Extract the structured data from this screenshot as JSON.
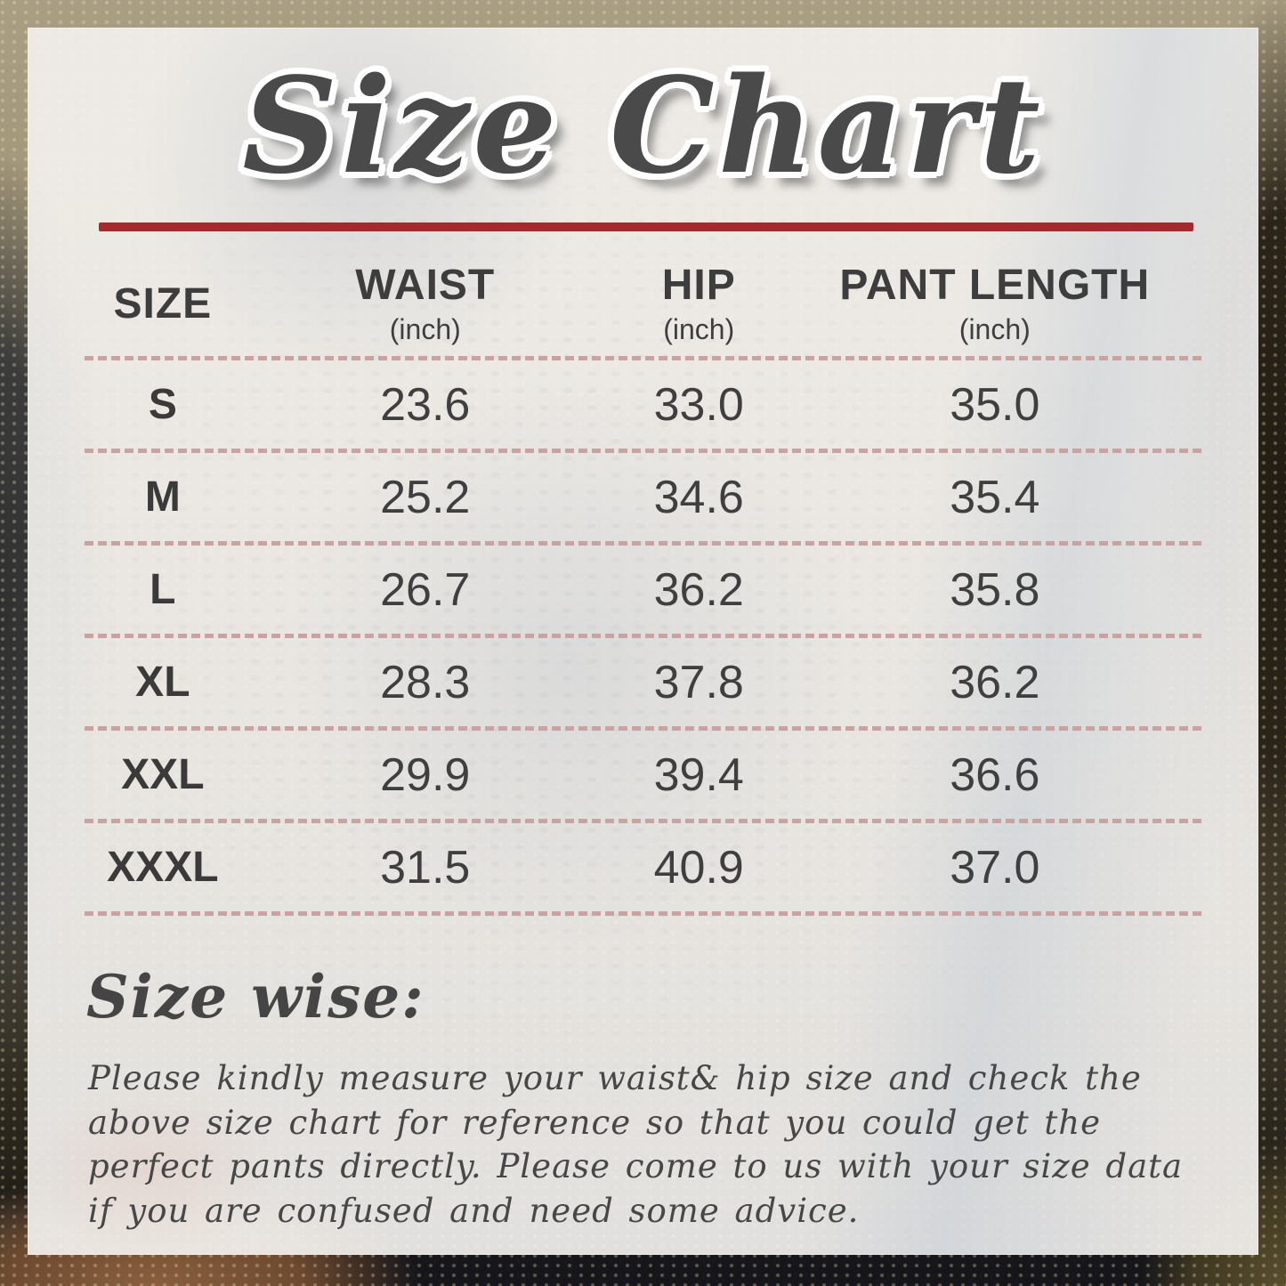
{
  "title": "Size Chart",
  "table": {
    "headers": [
      {
        "label": "SIZE",
        "unit": ""
      },
      {
        "label": "WAIST",
        "unit": "(inch)"
      },
      {
        "label": "HIP",
        "unit": "(inch)"
      },
      {
        "label": "PANT LENGTH",
        "unit": "(inch)"
      }
    ],
    "rows": [
      {
        "size": "S",
        "waist": "23.6",
        "hip": "33.0",
        "pant_length": "35.0"
      },
      {
        "size": "M",
        "waist": "25.2",
        "hip": "34.6",
        "pant_length": "35.4"
      },
      {
        "size": "L",
        "waist": "26.7",
        "hip": "36.2",
        "pant_length": "35.8"
      },
      {
        "size": "XL",
        "waist": "28.3",
        "hip": "37.8",
        "pant_length": "36.2"
      },
      {
        "size": "XXL",
        "waist": "29.9",
        "hip": "39.4",
        "pant_length": "36.6"
      },
      {
        "size": "XXXL",
        "waist": "31.5",
        "hip": "40.9",
        "pant_length": "37.0"
      }
    ]
  },
  "size_wise": {
    "heading": "Size wise:",
    "body": "Please kindly measure your waist& hip size and check the above size chart for reference so that you could get the perfect pants directly. Please come to us with your size data if you are confused and need some advice."
  },
  "colors": {
    "accent_red": "#a32b2e",
    "dashed_line": "#c9a2a2",
    "text_dark": "#3d3d3d",
    "panel_bg": "#f2f0ed"
  }
}
